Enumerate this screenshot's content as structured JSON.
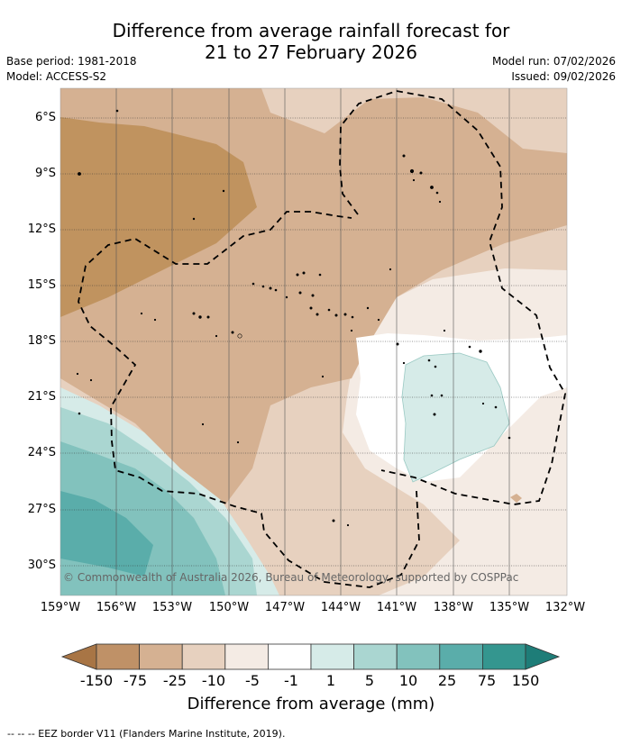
{
  "header": {
    "title_line1": "Difference from average rainfall forecast for",
    "title_line2": "21 to 27 February 2026",
    "base_period": "Base period: 1981-2018",
    "model": "Model: ACCESS-S2",
    "model_run": "Model run: 07/02/2026",
    "issued": "Issued: 09/02/2026"
  },
  "map": {
    "lat_labels": [
      "6°S",
      "9°S",
      "12°S",
      "15°S",
      "18°S",
      "21°S",
      "24°S",
      "27°S",
      "30°S"
    ],
    "lon_labels": [
      "159°W",
      "156°W",
      "153°W",
      "150°W",
      "147°W",
      "144°W",
      "141°W",
      "138°W",
      "135°W",
      "132°W"
    ],
    "copyright": "© Commonwealth of Australia 2026, Bureau of Meteorology, supported by COSPPac"
  },
  "colorbar": {
    "title": "Difference from average (mm)",
    "tick_labels": [
      "-150",
      "-75",
      "-25",
      "-10",
      "-5",
      "-1",
      "1",
      "5",
      "10",
      "25",
      "75",
      "150"
    ],
    "colors": [
      "#a87545",
      "#bf9167",
      "#d5b192",
      "#e7d1bf",
      "#f4ebe4",
      "#ffffff",
      "#d6ebe8",
      "#aad6d1",
      "#82c2bd",
      "#5aadaa",
      "#34968f",
      "#1e7d78"
    ]
  },
  "footer": {
    "legend_note": "--  --  -- EEZ border V11 (Flanders Marine Institute, 2019)."
  }
}
